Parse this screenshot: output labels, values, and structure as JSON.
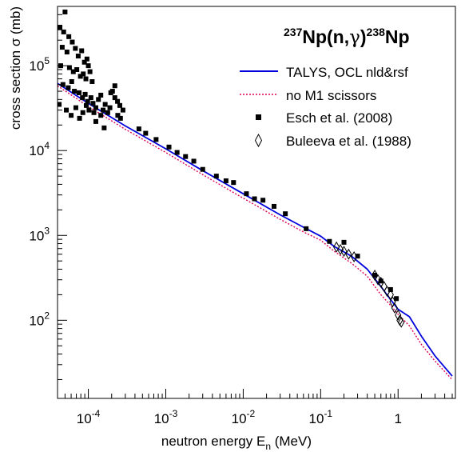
{
  "chart_data": {
    "type": "scatter",
    "title": "",
    "annotation": {
      "reaction_parts": [
        "237",
        "Np(n,",
        "γ",
        ")",
        "238",
        "Np"
      ]
    },
    "xlabel": "neutron energy E",
    "xlabel_sub": "n",
    "xlabel_unit": " (MeV)",
    "ylabel": "cross section σ (mb)",
    "x_scale": "log",
    "y_scale": "log",
    "xlim": [
      4e-05,
      5.5
    ],
    "ylim": [
      12,
      500000
    ],
    "x_ticks": [
      {
        "value": 0.0001,
        "base": "10",
        "exp": "-4"
      },
      {
        "value": 0.001,
        "base": "10",
        "exp": "-3"
      },
      {
        "value": 0.01,
        "base": "10",
        "exp": "-2"
      },
      {
        "value": 0.1,
        "base": "10",
        "exp": "-1"
      },
      {
        "value": 1,
        "base": "1",
        "exp": ""
      }
    ],
    "y_ticks": [
      {
        "value": 100,
        "base": "10",
        "exp": "2"
      },
      {
        "value": 1000,
        "base": "10",
        "exp": "3"
      },
      {
        "value": 10000,
        "base": "10",
        "exp": "4"
      },
      {
        "value": 100000,
        "base": "10",
        "exp": "5"
      }
    ],
    "grid": false,
    "legend_position": "top-right",
    "series": [
      {
        "name": "TALYS, OCL nld&rsf",
        "kind": "line",
        "color": "#0000dd",
        "dash": "",
        "x": [
          4e-05,
          0.0001,
          0.0003,
          0.001,
          0.003,
          0.01,
          0.03,
          0.06,
          0.1,
          0.15,
          0.25,
          0.4,
          0.6,
          0.8,
          1.0,
          1.4,
          2.0,
          3.0,
          5.0
        ],
        "y": [
          62000,
          36000,
          19500,
          10500,
          5800,
          3100,
          1750,
          1250,
          980,
          740,
          570,
          400,
          250,
          175,
          135,
          110,
          65,
          38,
          22
        ]
      },
      {
        "name": "no M1 scissors",
        "kind": "line",
        "color": "#dd0055",
        "dash": "2,2",
        "x": [
          4e-05,
          0.0001,
          0.0003,
          0.001,
          0.003,
          0.01,
          0.03,
          0.06,
          0.1,
          0.15,
          0.25,
          0.4,
          0.6,
          0.8,
          1.0,
          1.4,
          2.0,
          3.0,
          5.0
        ],
        "y": [
          58000,
          33000,
          17800,
          9500,
          5200,
          2750,
          1550,
          1100,
          880,
          650,
          470,
          330,
          200,
          150,
          118,
          86,
          52,
          33,
          20
        ]
      },
      {
        "name": "Esch et al. (2008)",
        "kind": "square",
        "color": "#000000",
        "points": [
          [
            5e-05,
            430000
          ],
          [
            4.3e-05,
            280000
          ],
          [
            4.8e-05,
            250000
          ],
          [
            5.6e-05,
            220000
          ],
          [
            6.2e-05,
            190000
          ],
          [
            4.6e-05,
            165000
          ],
          [
            5.3e-05,
            145000
          ],
          [
            6.8e-05,
            160000
          ],
          [
            7.4e-05,
            130000
          ],
          [
            8.2e-05,
            150000
          ],
          [
            8.9e-05,
            110000
          ],
          [
            9.6e-05,
            120000
          ],
          [
            4.4e-05,
            100000
          ],
          [
            5.7e-05,
            95000
          ],
          [
            6.4e-05,
            85000
          ],
          [
            7.1e-05,
            90000
          ],
          [
            7.9e-05,
            75000
          ],
          [
            8.6e-05,
            80000
          ],
          [
            9.3e-05,
            70000
          ],
          [
            0.0001,
            100000
          ],
          [
            0.000105,
            85000
          ],
          [
            0.000112,
            65000
          ],
          [
            4.7e-05,
            60000
          ],
          [
            5.5e-05,
            55000
          ],
          [
            6.1e-05,
            65000
          ],
          [
            6.6e-05,
            50000
          ],
          [
            7.6e-05,
            48000
          ],
          [
            8.4e-05,
            42000
          ],
          [
            9.1e-05,
            46000
          ],
          [
            9.8e-05,
            38000
          ],
          [
            0.000108,
            42000
          ],
          [
            0.000115,
            36000
          ],
          [
            0.000125,
            32000
          ],
          [
            0.000135,
            40000
          ],
          [
            0.000145,
            45000
          ],
          [
            0.000155,
            30000
          ],
          [
            0.000165,
            35000
          ],
          [
            0.000178,
            28000
          ],
          [
            0.00019,
            32000
          ],
          [
            0.000205,
            50000
          ],
          [
            0.00022,
            42000
          ],
          [
            0.000238,
            38000
          ],
          [
            0.000255,
            34000
          ],
          [
            0.00028,
            30000
          ],
          [
            0.00022,
            58000
          ],
          [
            0.000195,
            48000
          ],
          [
            0.000125,
            22000
          ],
          [
            0.000145,
            26000
          ],
          [
            4.2e-05,
            35000
          ],
          [
            5.2e-05,
            30000
          ],
          [
            6e-05,
            26000
          ],
          [
            6.9e-05,
            32000
          ],
          [
            7.7e-05,
            24000
          ],
          [
            8.5e-05,
            28000
          ],
          [
            9.4e-05,
            34000
          ],
          [
            0.000102,
            30000
          ],
          [
            0.000118,
            28000
          ],
          [
            0.00016,
            18500
          ],
          [
            0.00024,
            26000
          ],
          [
            0.00026,
            24000
          ],
          [
            0.00045,
            18000
          ],
          [
            0.00055,
            16000
          ],
          [
            0.00075,
            13500
          ],
          [
            0.0011,
            11000
          ],
          [
            0.0014,
            9500
          ],
          [
            0.0018,
            8500
          ],
          [
            0.0023,
            7500
          ],
          [
            0.003,
            6000
          ],
          [
            0.0045,
            5000
          ],
          [
            0.006,
            4400
          ],
          [
            0.0075,
            4200
          ],
          [
            0.011,
            3100
          ],
          [
            0.014,
            2700
          ],
          [
            0.018,
            2600
          ],
          [
            0.025,
            2200
          ],
          [
            0.035,
            1800
          ],
          [
            0.065,
            1200
          ],
          [
            0.13,
            850
          ],
          [
            0.2,
            830
          ],
          [
            0.3,
            570
          ],
          [
            0.5,
            340
          ],
          [
            0.6,
            290
          ],
          [
            0.8,
            230
          ],
          [
            0.95,
            180
          ]
        ]
      },
      {
        "name": "Buleeva et al. (1988)",
        "kind": "diamond",
        "color": "#000000",
        "points": [
          [
            0.16,
            730
          ],
          [
            0.18,
            680
          ],
          [
            0.2,
            650
          ],
          [
            0.23,
            600
          ],
          [
            0.27,
            560
          ],
          [
            0.5,
            340
          ],
          [
            0.55,
            300
          ],
          [
            0.6,
            280
          ],
          [
            0.66,
            250
          ],
          [
            0.72,
            220
          ],
          [
            0.8,
            200
          ],
          [
            0.85,
            165
          ],
          [
            0.9,
            140
          ],
          [
            1.0,
            115
          ],
          [
            1.05,
            100
          ],
          [
            1.1,
            95
          ]
        ]
      }
    ]
  }
}
